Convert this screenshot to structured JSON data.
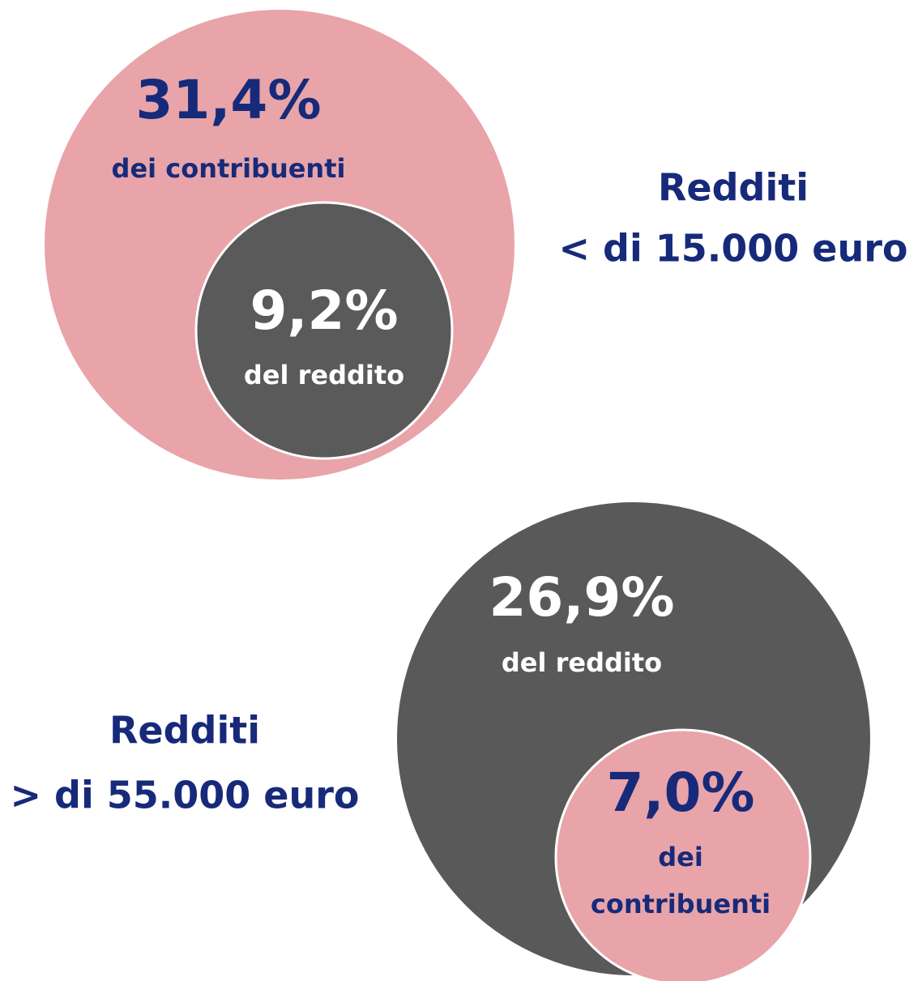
{
  "groups": [
    {
      "title": "Redditi",
      "subtitle": "< di 15.000 euro",
      "outer": {
        "value": "31,4%",
        "caption": [
          "dei contribuenti"
        ]
      },
      "inner": {
        "value": "9,2%",
        "caption": [
          "del reddito"
        ]
      }
    },
    {
      "title": "Redditi",
      "subtitle": "> di 55.000 euro",
      "outer": {
        "value": "26,9%",
        "caption": [
          "del reddito"
        ]
      },
      "inner": {
        "value": "7,0%",
        "caption": [
          "dei",
          "contribuenti"
        ]
      }
    }
  ]
}
